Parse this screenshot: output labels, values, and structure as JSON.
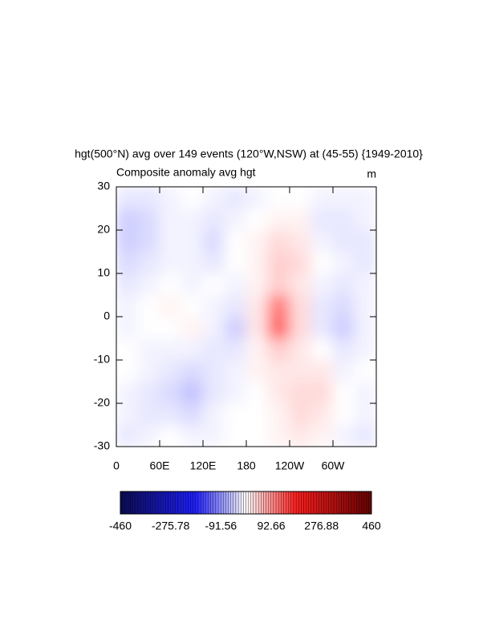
{
  "chart_data": {
    "type": "heatmap",
    "title": "hgt(500°N) avg over 149 events (120°W,NSW) at (45-55) {1949-2010}",
    "subtitle_left": "Composite anomaly avg hgt",
    "subtitle_right": "m",
    "xlim": [
      0,
      360
    ],
    "xticks": [
      0,
      {
        "value": 60,
        "label": "60E"
      },
      {
        "value": 120,
        "label": "120E"
      },
      180,
      {
        "value": 240,
        "label": "120W"
      },
      {
        "value": 300,
        "label": "60W"
      }
    ],
    "ylim": [
      -30,
      30
    ],
    "yticks": [
      -30,
      -20,
      -10,
      0,
      10,
      20,
      30
    ],
    "x": [
      15,
      45,
      75,
      105,
      135,
      165,
      195,
      225,
      255,
      285,
      315,
      345
    ],
    "y": [
      -27.5,
      -22.5,
      -17.5,
      -12.5,
      -7.5,
      -2.5,
      2.5,
      7.5,
      12.5,
      17.5,
      22.5,
      27.5
    ],
    "z": [
      [
        -20,
        -10,
        0,
        -10,
        -10,
        0,
        0,
        10,
        20,
        10,
        -10,
        -20
      ],
      [
        -10,
        -20,
        -20,
        -30,
        -10,
        0,
        0,
        10,
        30,
        20,
        0,
        -10
      ],
      [
        -10,
        -20,
        -30,
        -50,
        -20,
        -10,
        0,
        20,
        30,
        30,
        0,
        -10
      ],
      [
        0,
        -10,
        -20,
        -30,
        -20,
        -10,
        10,
        20,
        20,
        20,
        -10,
        0
      ],
      [
        0,
        -10,
        -10,
        -10,
        -20,
        -20,
        10,
        40,
        20,
        0,
        -20,
        -10
      ],
      [
        -10,
        0,
        0,
        10,
        -10,
        -40,
        20,
        130,
        30,
        -20,
        -40,
        -10
      ],
      [
        -10,
        0,
        10,
        0,
        -10,
        -20,
        20,
        110,
        30,
        -20,
        -30,
        -10
      ],
      [
        -20,
        -10,
        0,
        -10,
        0,
        -10,
        10,
        40,
        20,
        -10,
        -20,
        -10
      ],
      [
        -30,
        -20,
        -10,
        -10,
        -20,
        0,
        10,
        40,
        30,
        0,
        -10,
        -20
      ],
      [
        -40,
        -30,
        -10,
        -10,
        -30,
        0,
        10,
        30,
        20,
        -10,
        -20,
        -20
      ],
      [
        -40,
        -30,
        -10,
        -10,
        -20,
        -10,
        0,
        10,
        10,
        -20,
        -20,
        -10
      ],
      [
        -20,
        -20,
        -10,
        0,
        -10,
        -20,
        -10,
        0,
        0,
        -10,
        -10,
        -10
      ]
    ],
    "colorbar": {
      "levels": [
        -460,
        -275.78,
        -91.56,
        92.66,
        276.88,
        460
      ]
    }
  }
}
